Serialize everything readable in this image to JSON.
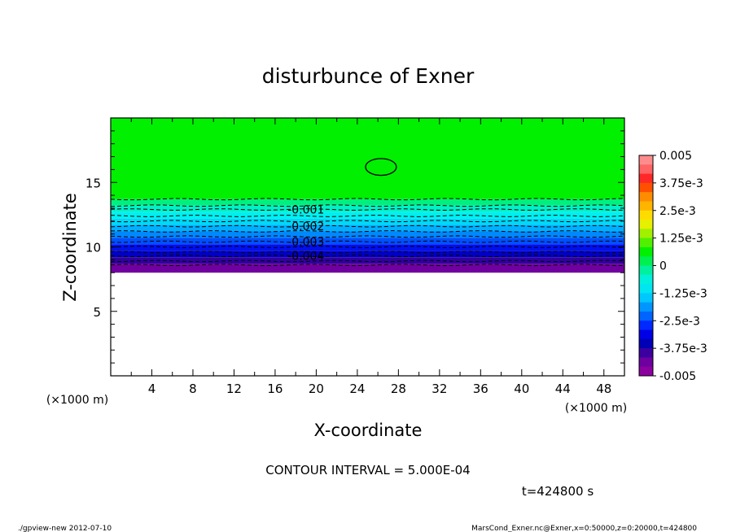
{
  "chart_data": {
    "type": "contour",
    "title": "disturbunce of Exner",
    "xlabel": "X-coordinate",
    "ylabel": "Z-coordinate",
    "x_unit": "(×1000 m)",
    "x_unit_right": "(×1000 m)",
    "xlim": [
      0,
      50
    ],
    "ylim": [
      0,
      20
    ],
    "x_ticks": [
      "4",
      "8",
      "12",
      "16",
      "20",
      "24",
      "28",
      "32",
      "36",
      "40",
      "44",
      "48"
    ],
    "x_tick_values": [
      4,
      8,
      12,
      16,
      20,
      24,
      28,
      32,
      36,
      40,
      44,
      48
    ],
    "y_ticks": [
      "5",
      "10",
      "15"
    ],
    "y_tick_values": [
      5,
      10,
      15
    ],
    "contour_interval_text": "CONTOUR INTERVAL = 5.000E-04",
    "time_text": "t=424800 s",
    "contour_labels": [
      {
        "text": "-0.001",
        "x": 19,
        "z": 12.9
      },
      {
        "text": "-0.002",
        "x": 19,
        "z": 11.6
      },
      {
        "text": "-0.003",
        "x": 19,
        "z": 10.4
      },
      {
        "text": "-0.004",
        "x": 19,
        "z": 9.3
      }
    ],
    "dashed_contour_levels_z": [
      13.7,
      13.2,
      12.9,
      12.4,
      12.0,
      11.6,
      11.2,
      10.8,
      10.4,
      10.0,
      9.6,
      9.3,
      8.9,
      8.6
    ],
    "zero_contour_closed": {
      "center_x": 26.3,
      "center_z": 16.2,
      "half_width_x": 1.5,
      "half_height_z": 0.65
    },
    "field_bands": [
      {
        "z_top": 20.0,
        "z_bottom": 13.7,
        "color": "#00f000"
      },
      {
        "z_top": 13.7,
        "z_bottom": 13.2,
        "color": "#00f080"
      },
      {
        "z_top": 13.2,
        "z_bottom": 12.7,
        "color": "#00f0c8"
      },
      {
        "z_top": 12.7,
        "z_bottom": 12.2,
        "color": "#00f0f0"
      },
      {
        "z_top": 12.2,
        "z_bottom": 11.7,
        "color": "#00d8f8"
      },
      {
        "z_top": 11.7,
        "z_bottom": 11.2,
        "color": "#00b0ff"
      },
      {
        "z_top": 11.2,
        "z_bottom": 10.7,
        "color": "#0088ff"
      },
      {
        "z_top": 10.7,
        "z_bottom": 10.2,
        "color": "#0050ff"
      },
      {
        "z_top": 10.2,
        "z_bottom": 9.7,
        "color": "#0010f0"
      },
      {
        "z_top": 9.7,
        "z_bottom": 9.2,
        "color": "#0000c8"
      },
      {
        "z_top": 9.2,
        "z_bottom": 8.7,
        "color": "#3000a0"
      },
      {
        "z_top": 8.7,
        "z_bottom": 8.0,
        "color": "#7000a0"
      }
    ],
    "colorbar": {
      "vmin": -0.005,
      "vmax": 0.005,
      "labels": [
        "0.005",
        "3.75e-3",
        "2.5e-3",
        "1.25e-3",
        "0",
        "-1.25e-3",
        "-2.5e-3",
        "-3.75e-3",
        "-0.005"
      ],
      "label_values": [
        0.005,
        0.00375,
        0.0025,
        0.00125,
        0,
        -0.00125,
        -0.0025,
        -0.00375,
        -0.005
      ],
      "colors_top_to_bottom": [
        "#ff8c8c",
        "#ff6464",
        "#ff2828",
        "#ff5000",
        "#ff8c00",
        "#ffb400",
        "#ffdc00",
        "#e6f000",
        "#a0f000",
        "#50f000",
        "#00f000",
        "#00f050",
        "#00f0a0",
        "#00f0dc",
        "#00e6f0",
        "#00c8ff",
        "#0096ff",
        "#0064ff",
        "#0028ff",
        "#0000e6",
        "#0000b4",
        "#3c00a0",
        "#6e00a0",
        "#8c00a0"
      ]
    }
  },
  "footer": {
    "left": "./gpview-new   2012-07-10",
    "right": "MarsCond_Exner.nc@Exner,x=0:50000,z=0:20000,t=424800"
  }
}
